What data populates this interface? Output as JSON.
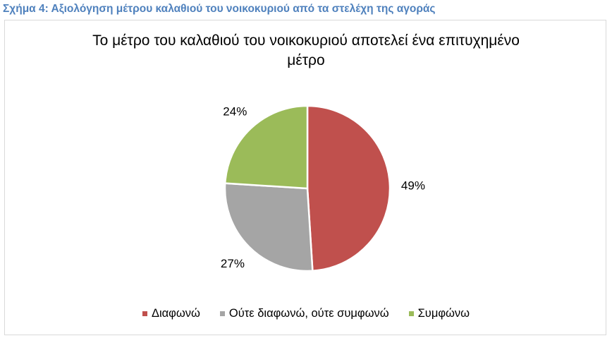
{
  "caption": "Σχήμα 4: Αξιολόγηση μέτρου καλαθιού του νοικοκυριού από τα στελέχη της αγοράς",
  "chart_data": {
    "type": "pie",
    "title_line1": "Το μέτρο του καλαθιού του νοικοκυριού αποτελεί ένα επιτυχημένο",
    "title_line2": "μέτρο",
    "legend_position": "bottom",
    "slices": [
      {
        "label": "Διαφωνώ",
        "value": 49,
        "data_label": "49%",
        "color": "#c0504d"
      },
      {
        "label": "Ούτε διαφωνώ, ούτε συμφωνώ",
        "value": 27,
        "data_label": "27%",
        "color": "#a5a5a5"
      },
      {
        "label": "Συμφώνω",
        "value": 24,
        "data_label": "24%",
        "color": "#9bbb59"
      }
    ]
  }
}
